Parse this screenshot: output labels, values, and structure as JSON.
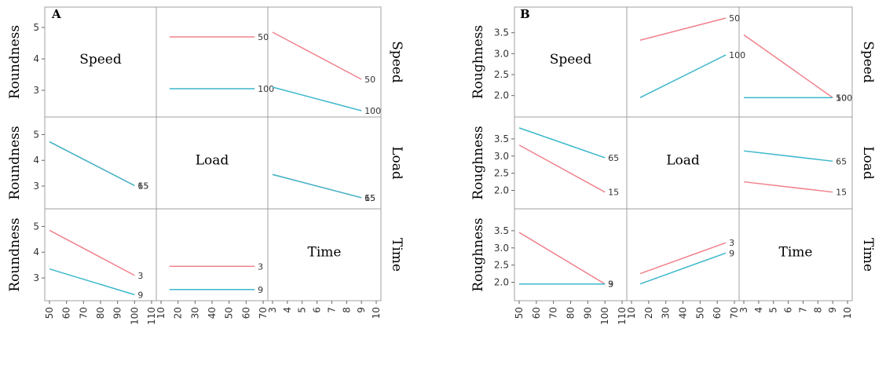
{
  "colors": {
    "series_1": "#f0828c",
    "series_2": "#3cb8cc",
    "frame": "#a0a0a0"
  },
  "chart_data": [
    {
      "type": "line",
      "panel_label": "A",
      "ylabel": "Roundness",
      "factors": [
        "Speed",
        "Load",
        "Time"
      ],
      "grid": false,
      "x_axes": [
        {
          "factor": "Speed",
          "range": [
            50,
            110
          ],
          "ticks": [
            "50",
            "60",
            "70",
            "80",
            "90",
            "100",
            "110"
          ]
        },
        {
          "factor": "Load",
          "range": [
            10,
            70
          ],
          "ticks": [
            "10",
            "20",
            "30",
            "40",
            "50",
            "60",
            "70"
          ]
        },
        {
          "factor": "Time",
          "range": [
            3,
            10
          ],
          "ticks": [
            "3",
            "4",
            "5",
            "6",
            "7",
            "8",
            "9",
            "10"
          ]
        }
      ],
      "y_axis": {
        "range": [
          2.3,
          5.5
        ],
        "ticks": [
          "5",
          "4",
          "3"
        ]
      },
      "cells": [
        {
          "row": 0,
          "col": 1,
          "series": [
            {
              "name": "50",
              "x": [
                15,
                65
              ],
              "y": [
                4.7,
                4.7
              ]
            },
            {
              "name": "100",
              "x": [
                15,
                65
              ],
              "y": [
                3.05,
                3.05
              ]
            }
          ]
        },
        {
          "row": 0,
          "col": 2,
          "series": [
            {
              "name": "50",
              "x": [
                3,
                9
              ],
              "y": [
                4.85,
                3.35
              ]
            },
            {
              "name": "100",
              "x": [
                3,
                9
              ],
              "y": [
                3.1,
                2.35
              ]
            }
          ]
        },
        {
          "row": 1,
          "col": 0,
          "series": [
            {
              "name": "15",
              "x": [
                50,
                100
              ],
              "y": [
                4.72,
                3.02
              ]
            },
            {
              "name": "65",
              "x": [
                50,
                100
              ],
              "y": [
                4.72,
                3.02
              ]
            }
          ]
        },
        {
          "row": 1,
          "col": 2,
          "series": [
            {
              "name": "15",
              "x": [
                3,
                9
              ],
              "y": [
                3.45,
                2.55
              ]
            },
            {
              "name": "65",
              "x": [
                3,
                9
              ],
              "y": [
                3.45,
                2.55
              ]
            }
          ]
        },
        {
          "row": 2,
          "col": 0,
          "series": [
            {
              "name": "3",
              "x": [
                50,
                100
              ],
              "y": [
                4.85,
                3.1
              ]
            },
            {
              "name": "9",
              "x": [
                50,
                100
              ],
              "y": [
                3.35,
                2.35
              ]
            }
          ]
        },
        {
          "row": 2,
          "col": 1,
          "series": [
            {
              "name": "3",
              "x": [
                15,
                65
              ],
              "y": [
                3.45,
                3.45
              ]
            },
            {
              "name": "9",
              "x": [
                15,
                65
              ],
              "y": [
                2.55,
                2.55
              ]
            }
          ]
        }
      ]
    },
    {
      "type": "line",
      "panel_label": "B",
      "ylabel": "Roughness",
      "factors": [
        "Speed",
        "Load",
        "Time"
      ],
      "grid": false,
      "x_axes": [
        {
          "factor": "Speed",
          "range": [
            50,
            110
          ],
          "ticks": [
            "50",
            "60",
            "70",
            "80",
            "90",
            "100",
            "110"
          ]
        },
        {
          "factor": "Load",
          "range": [
            10,
            70
          ],
          "ticks": [
            "10",
            "20",
            "30",
            "40",
            "50",
            "60",
            "70"
          ]
        },
        {
          "factor": "Time",
          "range": [
            3,
            10
          ],
          "ticks": [
            "3",
            "4",
            "5",
            "6",
            "7",
            "8",
            "9",
            "10"
          ]
        }
      ],
      "y_axis": {
        "range": [
          1.6,
          4.0
        ],
        "ticks": [
          "3.5",
          "3.0",
          "2.5",
          "2.0"
        ]
      },
      "cells": [
        {
          "row": 0,
          "col": 1,
          "series": [
            {
              "name": "50",
              "x": [
                15,
                65
              ],
              "y": [
                3.32,
                3.85
              ]
            },
            {
              "name": "100",
              "x": [
                15,
                65
              ],
              "y": [
                1.95,
                2.97
              ]
            }
          ]
        },
        {
          "row": 0,
          "col": 2,
          "series": [
            {
              "name": "50",
              "x": [
                3,
                9
              ],
              "y": [
                3.45,
                1.95
              ]
            },
            {
              "name": "100",
              "x": [
                3,
                9
              ],
              "y": [
                1.95,
                1.95
              ]
            }
          ]
        },
        {
          "row": 1,
          "col": 0,
          "series": [
            {
              "name": "15",
              "x": [
                50,
                100
              ],
              "y": [
                3.32,
                1.95
              ]
            },
            {
              "name": "65",
              "x": [
                50,
                100
              ],
              "y": [
                3.82,
                2.95
              ]
            }
          ]
        },
        {
          "row": 1,
          "col": 2,
          "series": [
            {
              "name": "15",
              "x": [
                3,
                9
              ],
              "y": [
                2.25,
                1.95
              ]
            },
            {
              "name": "65",
              "x": [
                3,
                9
              ],
              "y": [
                3.15,
                2.85
              ]
            }
          ]
        },
        {
          "row": 2,
          "col": 0,
          "series": [
            {
              "name": "3",
              "x": [
                50,
                100
              ],
              "y": [
                3.45,
                1.95
              ]
            },
            {
              "name": "9",
              "x": [
                50,
                100
              ],
              "y": [
                1.95,
                1.95
              ]
            }
          ]
        },
        {
          "row": 2,
          "col": 1,
          "series": [
            {
              "name": "3",
              "x": [
                15,
                65
              ],
              "y": [
                2.25,
                3.15
              ]
            },
            {
              "name": "9",
              "x": [
                15,
                65
              ],
              "y": [
                1.95,
                2.85
              ]
            }
          ]
        }
      ]
    }
  ]
}
